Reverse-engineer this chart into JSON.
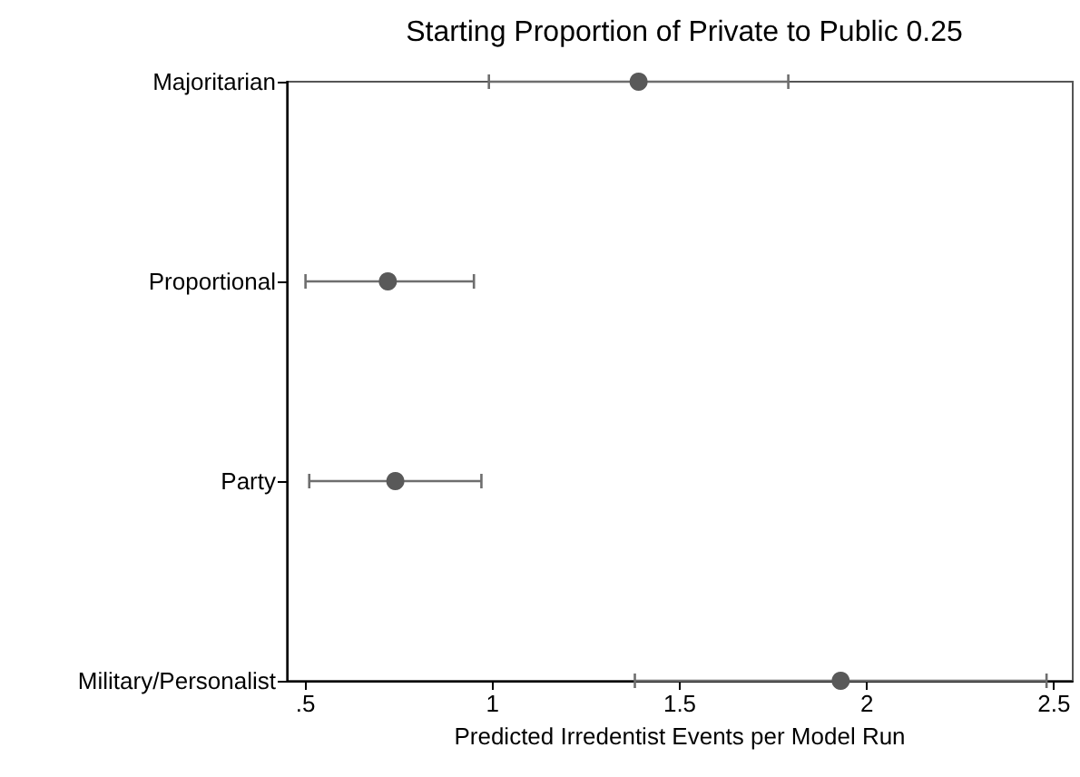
{
  "chart_data": {
    "type": "scatter",
    "title": "Starting Proportion of Private to Public 0.25",
    "xlabel": "Predicted Irredentist Events per Model Run",
    "orientation": "horizontal",
    "categories": [
      "Majoritarian",
      "Proportional",
      "Party",
      "Military/Personalist"
    ],
    "values": [
      1.39,
      0.72,
      0.74,
      1.93
    ],
    "errors": [
      [
        0.99,
        1.79
      ],
      [
        0.5,
        0.95
      ],
      [
        0.51,
        0.97
      ],
      [
        1.38,
        2.48
      ]
    ],
    "color": "#595959",
    "marker": "circle",
    "grid": false,
    "xlim": [
      0.45,
      2.55
    ],
    "xticks": [
      {
        "value": 0.5,
        "label": ".5"
      },
      1,
      1.5,
      2,
      2.5
    ]
  }
}
